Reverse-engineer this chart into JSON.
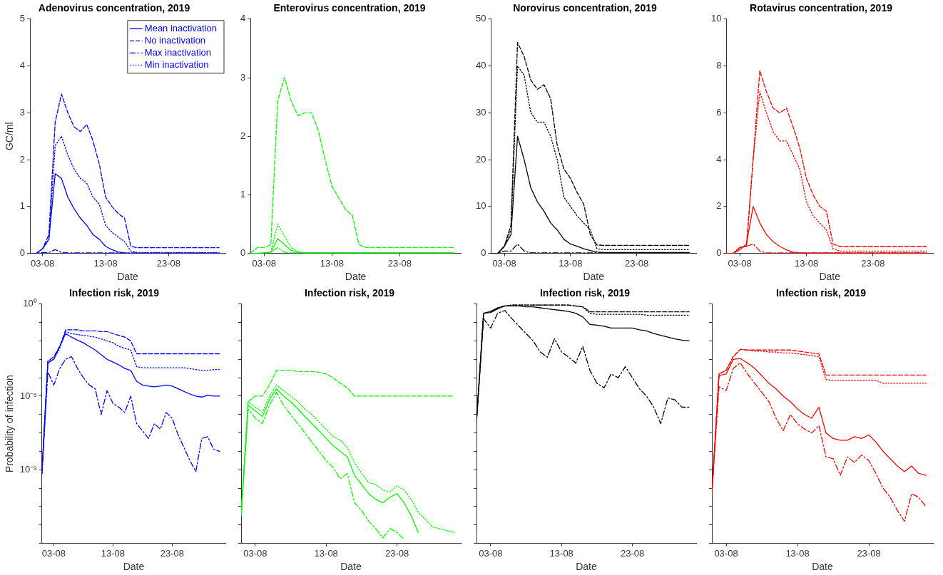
{
  "chart_data": [
    {
      "type": "line",
      "title": "Adenovirus concentration, 2019",
      "xlabel": "Date",
      "ylabel": "GC/ml",
      "legend": "top right",
      "grid": false,
      "x": [
        "--08-01",
        "--08-02",
        "--08-03",
        "--08-04",
        "--08-05",
        "--08-06",
        "--08-07",
        "--08-08",
        "--08-09",
        "--08-10",
        "--08-11",
        "--08-12",
        "--08-13",
        "--08-14",
        "--08-15",
        "--08-16",
        "--08-17",
        "--08-18",
        "--08-19",
        "--08-20",
        "--08-21",
        "--08-22",
        "--08-23",
        "--08-24",
        "--08-25",
        "--08-26",
        "--08-27",
        "--08-28",
        "--08-29",
        "--08-30",
        "--08-31"
      ],
      "xlim": [
        "--08-01",
        "--09-01"
      ],
      "xticks": [
        {
          "value": "--08-03",
          "label": "03-08"
        },
        {
          "value": "--08-13",
          "label": "13-08"
        },
        {
          "value": "--08-23",
          "label": "23-08"
        }
      ],
      "ylim": [
        0,
        5
      ],
      "yticks": [
        0,
        1,
        2,
        3,
        4,
        5
      ],
      "series": [
        {
          "name": "Mean inactivation",
          "color": "#0000ff",
          "line_style": "solid",
          "values": [
            0,
            0,
            0.1,
            0.3,
            1.7,
            1.6,
            1.2,
            0.95,
            0.75,
            0.6,
            0.4,
            0.3,
            0.15,
            0.08,
            0.03,
            0.01,
            0,
            0,
            0,
            0,
            0,
            0,
            0,
            0,
            0,
            0,
            0,
            0,
            0,
            0,
            0
          ]
        },
        {
          "name": "No inactivation",
          "color": "#0000ff",
          "line_style": "dashed",
          "values": [
            0,
            0,
            0.1,
            0.4,
            2.8,
            3.4,
            3.0,
            2.7,
            2.6,
            2.75,
            2.4,
            1.9,
            1.2,
            1.0,
            0.85,
            0.75,
            0.15,
            0.12,
            0.12,
            0.12,
            0.12,
            0.12,
            0.12,
            0.12,
            0.12,
            0.12,
            0.12,
            0.12,
            0.12,
            0.12,
            0.12
          ]
        },
        {
          "name": "Max inactivation",
          "color": "#0000ff",
          "line_style": "dashdot",
          "values": [
            0,
            0,
            0.02,
            0.02,
            0.08,
            0.02,
            0.01,
            0.01,
            0.01,
            0.01,
            0.01,
            0.01,
            0.01,
            0.01,
            0.01,
            0.01,
            0.01,
            0.01,
            0.01,
            0.01,
            0.01,
            0.01,
            0.01,
            0.01,
            0.01,
            0.01,
            0.01,
            0.01,
            0.01,
            0.01,
            0.01
          ]
        },
        {
          "name": "Min inactivation",
          "color": "#0000ff",
          "line_style": "dotted",
          "values": [
            0,
            0,
            0.1,
            0.3,
            2.3,
            2.5,
            2.1,
            1.8,
            1.6,
            1.5,
            1.2,
            1.05,
            0.6,
            0.45,
            0.35,
            0.25,
            0.05,
            0.02,
            0.02,
            0.02,
            0.02,
            0.02,
            0.02,
            0.02,
            0.02,
            0.02,
            0.02,
            0.02,
            0.02,
            0.02,
            0.02
          ]
        }
      ]
    },
    {
      "type": "line",
      "title": "Enterovirus concentration, 2019",
      "xlabel": "Date",
      "grid": false,
      "x": [
        "--08-01",
        "--08-02",
        "--08-03",
        "--08-04",
        "--08-05",
        "--08-06",
        "--08-07",
        "--08-08",
        "--08-09",
        "--08-10",
        "--08-11",
        "--08-12",
        "--08-13",
        "--08-14",
        "--08-15",
        "--08-16",
        "--08-17",
        "--08-18",
        "--08-19",
        "--08-20",
        "--08-21",
        "--08-22",
        "--08-23",
        "--08-24",
        "--08-25",
        "--08-26",
        "--08-27",
        "--08-28",
        "--08-29",
        "--08-30",
        "--08-31"
      ],
      "xlim": [
        "--08-01",
        "--09-01"
      ],
      "xticks": [
        {
          "value": "--08-03",
          "label": "03-08"
        },
        {
          "value": "--08-13",
          "label": "13-08"
        },
        {
          "value": "--08-23",
          "label": "23-08"
        }
      ],
      "ylim": [
        0,
        4
      ],
      "yticks": [
        0,
        1,
        2,
        3,
        4
      ],
      "series": [
        {
          "color": "#00ff00",
          "line_style": "solid",
          "values": [
            0,
            0,
            0.01,
            0.02,
            0.25,
            0.15,
            0.05,
            0.02,
            0.01,
            0.01,
            0.01,
            0.01,
            0.01,
            0.01,
            0.01,
            0.01,
            0.01,
            0.01,
            0.01,
            0.01,
            0.01,
            0.01,
            0.01,
            0.01,
            0.01,
            0.01,
            0.01,
            0.01,
            0.01,
            0.01,
            0.01
          ]
        },
        {
          "color": "#00ff00",
          "line_style": "dashed",
          "values": [
            0,
            0.1,
            0.1,
            0.15,
            2.6,
            3.0,
            2.6,
            2.35,
            2.4,
            2.4,
            2.1,
            1.6,
            1.15,
            0.95,
            0.75,
            0.65,
            0.15,
            0.1,
            0.1,
            0.1,
            0.1,
            0.1,
            0.1,
            0.1,
            0.1,
            0.1,
            0.1,
            0.1,
            0.1,
            0.1,
            0.1
          ]
        },
        {
          "color": "#00ff00",
          "line_style": "dashdot",
          "values": [
            0,
            0,
            0.01,
            0.02,
            0.1,
            0.02,
            0.01,
            0.01,
            0.01,
            0.01,
            0.01,
            0.01,
            0.01,
            0.01,
            0.01,
            0.01,
            0.01,
            0.01,
            0.01,
            0.01,
            0.01,
            0.01,
            0.01,
            0.01,
            0.01,
            0.01,
            0.01,
            0.01,
            0.01,
            0.01,
            0.01
          ]
        },
        {
          "color": "#00ff00",
          "line_style": "dotted",
          "values": [
            0,
            0,
            0.01,
            0.03,
            0.5,
            0.3,
            0.1,
            0.03,
            0.01,
            0.01,
            0.01,
            0.01,
            0.01,
            0.01,
            0.01,
            0.01,
            0.01,
            0.01,
            0.01,
            0.01,
            0.01,
            0.01,
            0.01,
            0.01,
            0.01,
            0.01,
            0.01,
            0.01,
            0.01,
            0.01,
            0.01
          ]
        }
      ]
    },
    {
      "type": "line",
      "title": "Norovirus concentration, 2019",
      "xlabel": "Date",
      "grid": false,
      "x": [
        "--08-01",
        "--08-02",
        "--08-03",
        "--08-04",
        "--08-05",
        "--08-06",
        "--08-07",
        "--08-08",
        "--08-09",
        "--08-10",
        "--08-11",
        "--08-12",
        "--08-13",
        "--08-14",
        "--08-15",
        "--08-16",
        "--08-17",
        "--08-18",
        "--08-19",
        "--08-20",
        "--08-21",
        "--08-22",
        "--08-23",
        "--08-24",
        "--08-25",
        "--08-26",
        "--08-27",
        "--08-28",
        "--08-29",
        "--08-30",
        "--08-31"
      ],
      "xlim": [
        "--08-01",
        "--09-01"
      ],
      "xticks": [
        {
          "value": "--08-03",
          "label": "03-08"
        },
        {
          "value": "--08-13",
          "label": "13-08"
        },
        {
          "value": "--08-23",
          "label": "23-08"
        }
      ],
      "ylim": [
        0,
        50
      ],
      "yticks": [
        0,
        10,
        20,
        30,
        40,
        50
      ],
      "series": [
        {
          "color": "#000000",
          "line_style": "solid",
          "values": [
            0,
            0,
            1.5,
            4,
            25,
            20,
            14,
            11,
            9,
            6.5,
            5,
            3,
            2,
            1.5,
            1,
            0.6,
            0.3,
            0.2,
            0.2,
            0.2,
            0.2,
            0.2,
            0.2,
            0.2,
            0.2,
            0.2,
            0.2,
            0.2,
            0.2,
            0.2,
            0.2
          ]
        },
        {
          "color": "#000000",
          "line_style": "dashed",
          "values": [
            0,
            0,
            1.5,
            6,
            45,
            42,
            37,
            35,
            36,
            33,
            23,
            18,
            16,
            13,
            10.5,
            4,
            1.8,
            1.7,
            1.7,
            1.7,
            1.7,
            1.7,
            1.7,
            1.7,
            1.7,
            1.7,
            1.7,
            1.7,
            1.7,
            1.7,
            1.7
          ]
        },
        {
          "color": "#000000",
          "line_style": "dashdot",
          "values": [
            0,
            0,
            0.5,
            0.5,
            2,
            0.5,
            0.1,
            0.1,
            0.1,
            0.1,
            0.1,
            0.1,
            0.1,
            0.1,
            0.1,
            0.1,
            0.1,
            0.1,
            0.1,
            0.1,
            0.1,
            0.1,
            0.1,
            0.1,
            0.1,
            0.1,
            0.1,
            0.1,
            0.1,
            0.1,
            0.1
          ]
        },
        {
          "color": "#000000",
          "line_style": "dotted",
          "values": [
            0,
            0,
            1.5,
            5,
            40,
            38,
            30,
            28,
            28,
            25,
            20,
            12,
            10,
            8,
            6.5,
            5,
            1,
            0.8,
            0.8,
            0.8,
            0.8,
            0.8,
            0.8,
            0.8,
            0.8,
            0.8,
            0.8,
            0.8,
            0.8,
            0.8,
            0.8
          ]
        }
      ]
    },
    {
      "type": "line",
      "title": "Rotavirus concentration, 2019",
      "xlabel": "Date",
      "grid": false,
      "x": [
        "--08-01",
        "--08-02",
        "--08-03",
        "--08-04",
        "--08-05",
        "--08-06",
        "--08-07",
        "--08-08",
        "--08-09",
        "--08-10",
        "--08-11",
        "--08-12",
        "--08-13",
        "--08-14",
        "--08-15",
        "--08-16",
        "--08-17",
        "--08-18",
        "--08-19",
        "--08-20",
        "--08-21",
        "--08-22",
        "--08-23",
        "--08-24",
        "--08-25",
        "--08-26",
        "--08-27",
        "--08-28",
        "--08-29",
        "--08-30",
        "--08-31"
      ],
      "xlim": [
        "--08-01",
        "--09-01"
      ],
      "xticks": [
        {
          "value": "--08-03",
          "label": "03-08"
        },
        {
          "value": "--08-13",
          "label": "13-08"
        },
        {
          "value": "--08-23",
          "label": "23-08"
        }
      ],
      "ylim": [
        0,
        10
      ],
      "yticks": [
        0,
        2,
        4,
        6,
        8,
        10
      ],
      "series": [
        {
          "color": "#ff0000",
          "line_style": "solid",
          "values": [
            0,
            0,
            0.15,
            0.4,
            2.0,
            1.3,
            0.8,
            0.5,
            0.3,
            0.15,
            0.05,
            0.02,
            0.01,
            0.01,
            0.01,
            0.01,
            0.01,
            0.01,
            0.01,
            0.01,
            0.01,
            0.01,
            0.01,
            0.01,
            0.01,
            0.01,
            0.01,
            0.01,
            0.01,
            0.01,
            0.01
          ]
        },
        {
          "color": "#ff0000",
          "line_style": "dashed",
          "values": [
            0,
            0,
            0.25,
            0.3,
            4,
            7.8,
            6.9,
            6.2,
            6.0,
            6.2,
            5.4,
            4.5,
            3.2,
            2.5,
            2.0,
            1.8,
            0.4,
            0.3,
            0.3,
            0.3,
            0.3,
            0.3,
            0.3,
            0.3,
            0.3,
            0.3,
            0.3,
            0.3,
            0.3,
            0.3,
            0.3
          ]
        },
        {
          "color": "#ff0000",
          "line_style": "dashdot",
          "values": [
            0,
            0,
            0.25,
            0.3,
            0.4,
            0.1,
            0.02,
            0.02,
            0.02,
            0.02,
            0.02,
            0.02,
            0.02,
            0.02,
            0.02,
            0.02,
            0.02,
            0.02,
            0.02,
            0.02,
            0.02,
            0.02,
            0.02,
            0.02,
            0.02,
            0.02,
            0.02,
            0.02,
            0.02,
            0.02,
            0.02
          ]
        },
        {
          "color": "#ff0000",
          "line_style": "dotted",
          "values": [
            0,
            0,
            0.25,
            0.3,
            4,
            6.9,
            6.0,
            5.2,
            4.8,
            4.8,
            4.2,
            3.6,
            2.2,
            1.6,
            1.3,
            1.0,
            0.2,
            0.1,
            0.1,
            0.1,
            0.1,
            0.1,
            0.1,
            0.1,
            0.1,
            0.1,
            0.1,
            0.1,
            0.1,
            0.1,
            0.1
          ]
        }
      ]
    },
    {
      "type": "line",
      "title": "Infection risk, 2019",
      "xlabel": "Date",
      "ylabel": "Probability of infection",
      "grid": false,
      "log": "y",
      "x": [
        "--08-01",
        "--08-02",
        "--08-03",
        "--08-04",
        "--08-05",
        "--08-06",
        "--08-07",
        "--08-08",
        "--08-09",
        "--08-10",
        "--08-11",
        "--08-12",
        "--08-13",
        "--08-14",
        "--08-15",
        "--08-16",
        "--08-17",
        "--08-18",
        "--08-19",
        "--08-20",
        "--08-21",
        "--08-22",
        "--08-23",
        "--08-24",
        "--08-25",
        "--08-26",
        "--08-27",
        "--08-28",
        "--08-29",
        "--08-30",
        "--08-31"
      ],
      "xlim": [
        "--08-01",
        "--09-01"
      ],
      "xticks": [
        {
          "value": "--08-03",
          "label": "03-08"
        },
        {
          "value": "--08-13",
          "label": "13-08"
        },
        {
          "value": "--08-23",
          "label": "23-08"
        }
      ],
      "ylim": [
        1e-13,
        1
      ],
      "yticks": [
        {
          "value": 1,
          "label": "10⁰"
        },
        {
          "value": 0.1,
          "label": null
        },
        {
          "value": 0.01,
          "label": null
        },
        {
          "value": 0.001,
          "label": null
        },
        {
          "value": 0.0001,
          "label": null
        },
        {
          "value": 1e-05,
          "label": "10⁻⁵"
        },
        {
          "value": 1e-06,
          "label": null
        },
        {
          "value": 1e-07,
          "label": null
        },
        {
          "value": 1e-08,
          "label": null
        },
        {
          "value": 1e-09,
          "label": "10⁻⁹"
        },
        {
          "value": 1e-10,
          "label": null
        },
        {
          "value": 1e-11,
          "label": null
        },
        {
          "value": 1e-12,
          "label": null
        },
        {
          "value": 1e-13,
          "label": null
        }
      ],
      "series": [
        {
          "color": "#0000ff",
          "line_style": "solid",
          "values": [
            1e-09,
            0.00063,
            0.001,
            0.005,
            0.025,
            0.016,
            0.011,
            0.0079,
            0.005,
            0.0032,
            0.0018,
            0.001,
            0.00071,
            0.0005,
            0.00032,
            0.00025,
            6.3e-05,
            4e-05,
            3.5e-05,
            3.2e-05,
            3.5e-05,
            4e-05,
            3.5e-05,
            2.5e-05,
            1.8e-05,
            1.3e-05,
            1e-05,
            8.9e-06,
            1.1e-05,
            1e-05,
            1e-05
          ]
        },
        {
          "color": "#0000ff",
          "line_style": "dashed",
          "values": [
            6.3e-10,
            0.00079,
            0.0014,
            0.005,
            0.04,
            0.04,
            0.04,
            0.035,
            0.035,
            0.035,
            0.032,
            0.032,
            0.025,
            0.02,
            0.016,
            0.01,
            0.002,
            0.002,
            0.002,
            0.002,
            0.002,
            0.002,
            0.002,
            0.002,
            0.002,
            0.002,
            0.002,
            0.002,
            0.002,
            0.002,
            0.002
          ]
        },
        {
          "color": "#0000ff",
          "line_style": "dashdot",
          "values": [
            6.3e-10,
            0.0002,
            4e-05,
            0.00032,
            0.001,
            0.0014,
            0.00032,
            0.0001,
            4e-05,
            2.5e-05,
            1e-06,
            2e-05,
            4e-06,
            2.5e-06,
            1.3e-06,
            1e-05,
            3.2e-07,
            1.3e-07,
            5e-08,
            3.2e-07,
            1.6e-07,
            1.3e-06,
            6.3e-07,
            7.9e-08,
            1.6e-08,
            3.2e-09,
            7.9e-10,
            5e-08,
            6.3e-08,
            1.3e-08,
            1e-08
          ]
        },
        {
          "color": "#0000ff",
          "line_style": "dotted",
          "values": [
            6.3e-10,
            0.00079,
            0.001,
            0.004,
            0.032,
            0.025,
            0.022,
            0.02,
            0.018,
            0.016,
            0.013,
            0.01,
            0.0079,
            0.005,
            0.004,
            0.0032,
            0.0004,
            0.00035,
            0.00035,
            0.00035,
            0.00035,
            0.00035,
            0.00035,
            0.00035,
            0.00035,
            0.00032,
            0.00028,
            0.00025,
            0.00025,
            0.00028,
            0.00028
          ]
        }
      ]
    },
    {
      "type": "line",
      "title": "Infection risk, 2019",
      "xlabel": "Date",
      "grid": false,
      "log": "y",
      "tick_labels": "x",
      "x": [
        "--08-01",
        "--08-02",
        "--08-03",
        "--08-04",
        "--08-05",
        "--08-06",
        "--08-07",
        "--08-08",
        "--08-09",
        "--08-10",
        "--08-11",
        "--08-12",
        "--08-13",
        "--08-14",
        "--08-15",
        "--08-16",
        "--08-17",
        "--08-18",
        "--08-19",
        "--08-20",
        "--08-21",
        "--08-22",
        "--08-23",
        "--08-24",
        "--08-25",
        "--08-26",
        "--08-27",
        "--08-28",
        "--08-29",
        "--08-30",
        "--08-31"
      ],
      "xlim": [
        "--08-01",
        "--09-01"
      ],
      "xticks": [
        {
          "value": "--08-03",
          "label": "03-08"
        },
        {
          "value": "--08-13",
          "label": "13-08"
        },
        {
          "value": "--08-23",
          "label": "23-08"
        }
      ],
      "ylim": [
        1e-13,
        1
      ],
      "yticks": [
        {
          "value": 1,
          "label": null
        },
        {
          "value": 0.1,
          "label": null
        },
        {
          "value": 0.01,
          "label": null
        },
        {
          "value": 0.001,
          "label": null
        },
        {
          "value": 0.0001,
          "label": null
        },
        {
          "value": 1e-05,
          "label": null
        },
        {
          "value": 1e-06,
          "label": null
        },
        {
          "value": 1e-07,
          "label": null
        },
        {
          "value": 1e-08,
          "label": null
        },
        {
          "value": 1e-09,
          "label": null
        },
        {
          "value": 1e-10,
          "label": null
        },
        {
          "value": 1e-11,
          "label": null
        },
        {
          "value": 1e-12,
          "label": null
        },
        {
          "value": 1e-13,
          "label": null
        }
      ],
      "series": [
        {
          "color": "#00ff00",
          "line_style": "solid",
          "values": [
            3.2e-12,
            3.2e-06,
            1.6e-06,
            7.9e-07,
            6.3e-06,
            2.5e-05,
            1e-05,
            5e-06,
            2e-06,
            7.9e-07,
            3.2e-07,
            1.3e-07,
            5e-08,
            2e-08,
            1e-08,
            5e-09,
            5e-10,
            1.6e-10,
            5e-11,
            2.5e-11,
            1.6e-11,
            3.2e-11,
            5e-11,
            1.6e-11,
            3.2e-12,
            4e-13,
            null,
            null,
            null,
            null,
            null
          ]
        },
        {
          "color": "#00ff00",
          "line_style": "dashed",
          "values": [
            3.2e-12,
            5e-06,
            1e-05,
            1e-05,
            4e-05,
            0.00025,
            0.00025,
            0.00025,
            0.00022,
            0.00022,
            0.00022,
            0.0002,
            0.00016,
            0.0001,
            5e-05,
            2.8e-05,
            1e-05,
            1e-05,
            1e-05,
            1e-05,
            1e-05,
            1e-05,
            1e-05,
            1e-05,
            1e-05,
            1e-05,
            1e-05,
            1e-05,
            1e-05,
            1e-05,
            1e-05
          ]
        },
        {
          "color": "#00ff00",
          "line_style": "dashdot",
          "values": [
            3.2e-12,
            2e-06,
            6.3e-07,
            3.2e-07,
            3.2e-06,
            1.6e-05,
            3.2e-06,
            1e-06,
            3.2e-07,
            1e-07,
            3.2e-08,
            1e-08,
            3.2e-09,
            1.3e-09,
            3.2e-10,
            6.3e-10,
            1.6e-11,
            6.3e-12,
            1.6e-12,
            6.3e-13,
            2e-13,
            6.3e-13,
            4e-13,
            1.6e-13,
            null,
            null,
            null,
            null,
            null,
            null,
            null
          ]
        },
        {
          "color": "#00ff00",
          "line_style": "dotted",
          "values": [
            3.2e-12,
            5e-06,
            2.5e-06,
            1.3e-06,
            1e-05,
            4e-05,
            2e-05,
            1e-05,
            5e-06,
            2e-06,
            1e-06,
            4e-07,
            1.6e-07,
            6.3e-08,
            4e-08,
            1.6e-08,
            2.5e-09,
            6.3e-10,
            2e-10,
            1.6e-10,
            7.9e-11,
            6.3e-11,
            1.3e-10,
            7.9e-11,
            2.5e-11,
            5e-12,
            2e-12,
            7.9e-13,
            6.3e-13,
            5e-13,
            4e-13
          ]
        }
      ]
    },
    {
      "type": "line",
      "title": "Infection risk, 2019",
      "xlabel": "Date",
      "grid": false,
      "log": "y",
      "tick_labels": "x",
      "x": [
        "--08-01",
        "--08-02",
        "--08-03",
        "--08-04",
        "--08-05",
        "--08-06",
        "--08-07",
        "--08-08",
        "--08-09",
        "--08-10",
        "--08-11",
        "--08-12",
        "--08-13",
        "--08-14",
        "--08-15",
        "--08-16",
        "--08-17",
        "--08-18",
        "--08-19",
        "--08-20",
        "--08-21",
        "--08-22",
        "--08-23",
        "--08-24",
        "--08-25",
        "--08-26",
        "--08-27",
        "--08-28",
        "--08-29",
        "--08-30",
        "--08-31"
      ],
      "xlim": [
        "--08-01",
        "--09-01"
      ],
      "xticks": [
        {
          "value": "--08-03",
          "label": "03-08"
        },
        {
          "value": "--08-13",
          "label": "13-08"
        },
        {
          "value": "--08-23",
          "label": "23-08"
        }
      ],
      "ylim": [
        1e-13,
        1
      ],
      "yticks": [
        {
          "value": 1,
          "label": null
        },
        {
          "value": 0.1,
          "label": null
        },
        {
          "value": 0.01,
          "label": null
        },
        {
          "value": 0.001,
          "label": null
        },
        {
          "value": 0.0001,
          "label": null
        },
        {
          "value": 1e-05,
          "label": null
        },
        {
          "value": 1e-06,
          "label": null
        },
        {
          "value": 1e-07,
          "label": null
        },
        {
          "value": 1e-08,
          "label": null
        },
        {
          "value": 1e-09,
          "label": null
        },
        {
          "value": 1e-10,
          "label": null
        },
        {
          "value": 1e-11,
          "label": null
        },
        {
          "value": 1e-12,
          "label": null
        },
        {
          "value": 1e-13,
          "label": null
        }
      ],
      "series": [
        {
          "color": "#000000",
          "line_style": "solid",
          "values": [
            4e-07,
            0.32,
            0.35,
            0.56,
            0.79,
            0.79,
            0.79,
            0.71,
            0.71,
            0.63,
            0.56,
            0.5,
            0.45,
            0.4,
            0.32,
            0.2,
            0.079,
            0.071,
            0.063,
            0.05,
            0.05,
            0.05,
            0.05,
            0.04,
            0.035,
            0.025,
            0.02,
            0.016,
            0.013,
            0.011,
            0.01
          ]
        },
        {
          "color": "#000000",
          "line_style": "dashed",
          "values": [
            4e-07,
            0.32,
            0.4,
            0.63,
            0.79,
            0.89,
            0.89,
            0.89,
            0.89,
            0.89,
            0.89,
            0.89,
            0.89,
            0.89,
            0.79,
            0.71,
            0.38,
            0.38,
            0.38,
            0.38,
            0.38,
            0.38,
            0.38,
            0.38,
            0.38,
            0.38,
            0.38,
            0.38,
            0.38,
            0.38,
            0.38
          ]
        },
        {
          "color": "#000000",
          "line_style": "dashdot",
          "values": [
            4e-07,
            0.16,
            0.05,
            0.32,
            0.45,
            0.16,
            0.063,
            0.025,
            0.01,
            0.0025,
            0.0013,
            0.013,
            0.0025,
            0.0013,
            0.00063,
            0.005,
            0.00025,
            5e-05,
            2.8e-05,
            0.00016,
            0.0001,
            0.0004,
            0.0001,
            2.5e-05,
            1e-05,
            2.5e-06,
            3.2e-07,
            7.9e-06,
            6.3e-06,
            2.5e-06,
            2.5e-06
          ]
        },
        {
          "color": "#000000",
          "line_style": "dotted",
          "values": [
            4e-07,
            0.32,
            0.4,
            0.63,
            0.79,
            0.89,
            0.89,
            0.89,
            0.89,
            0.89,
            0.89,
            0.89,
            0.89,
            0.89,
            0.79,
            0.71,
            0.32,
            0.28,
            0.28,
            0.28,
            0.28,
            0.28,
            0.28,
            0.28,
            0.25,
            0.25,
            0.25,
            0.25,
            0.25,
            0.25,
            0.25
          ]
        }
      ]
    },
    {
      "type": "line",
      "title": "Infection risk, 2019",
      "xlabel": "Date",
      "grid": false,
      "log": "y",
      "tick_labels": "x",
      "x": [
        "--08-01",
        "--08-02",
        "--08-03",
        "--08-04",
        "--08-05",
        "--08-06",
        "--08-07",
        "--08-08",
        "--08-09",
        "--08-10",
        "--08-11",
        "--08-12",
        "--08-13",
        "--08-14",
        "--08-15",
        "--08-16",
        "--08-17",
        "--08-18",
        "--08-19",
        "--08-20",
        "--08-21",
        "--08-22",
        "--08-23",
        "--08-24",
        "--08-25",
        "--08-26",
        "--08-27",
        "--08-28",
        "--08-29",
        "--08-30",
        "--08-31"
      ],
      "xlim": [
        "--08-01",
        "--09-01"
      ],
      "xticks": [
        {
          "value": "--08-03",
          "label": "03-08"
        },
        {
          "value": "--08-13",
          "label": "13-08"
        },
        {
          "value": "--08-23",
          "label": "23-08"
        }
      ],
      "ylim": [
        1e-13,
        1
      ],
      "yticks": [
        {
          "value": 1,
          "label": null
        },
        {
          "value": 0.1,
          "label": null
        },
        {
          "value": 0.01,
          "label": null
        },
        {
          "value": 0.001,
          "label": null
        },
        {
          "value": 0.0001,
          "label": null
        },
        {
          "value": 1e-05,
          "label": null
        },
        {
          "value": 1e-06,
          "label": null
        },
        {
          "value": 1e-07,
          "label": null
        },
        {
          "value": 1e-08,
          "label": null
        },
        {
          "value": 1e-09,
          "label": null
        },
        {
          "value": 1e-10,
          "label": null
        },
        {
          "value": 1e-11,
          "label": null
        },
        {
          "value": 1e-12,
          "label": null
        },
        {
          "value": 1e-13,
          "label": null
        }
      ],
      "series": [
        {
          "color": "#ff0000",
          "line_style": "solid",
          "values": [
            5e-11,
            0.00013,
            0.00016,
            0.001,
            0.0011,
            0.00063,
            0.00032,
            0.00013,
            5e-05,
            2.5e-05,
            1e-05,
            5e-06,
            2e-06,
            1e-06,
            6.3e-07,
            2.5e-06,
            1e-07,
            5e-08,
            4e-08,
            4e-08,
            6.3e-08,
            5e-08,
            7.9e-08,
            3.2e-08,
            1e-08,
            4e-09,
            1.6e-09,
            7.9e-10,
            1.6e-09,
            6.3e-10,
            5e-10
          ]
        },
        {
          "color": "#ff0000",
          "line_style": "dashed",
          "values": [
            5e-11,
            0.00016,
            0.00025,
            0.0014,
            0.0035,
            0.0032,
            0.0032,
            0.0032,
            0.0032,
            0.0032,
            0.0032,
            0.0032,
            0.0028,
            0.0025,
            0.0022,
            0.002,
            0.00014,
            0.00014,
            0.00014,
            0.00014,
            0.00014,
            0.00014,
            0.00014,
            0.00014,
            0.00014,
            0.00014,
            0.00014,
            0.00014,
            0.00014,
            0.00014,
            0.00014
          ]
        },
        {
          "color": "#ff0000",
          "line_style": "dashdot",
          "values": [
            5e-11,
            3.2e-05,
            2e-05,
            0.00032,
            0.00063,
            0.00016,
            5e-05,
            1.6e-05,
            5e-06,
            6.3e-07,
            1.3e-07,
            1e-06,
            3.2e-07,
            1.6e-07,
            1e-07,
            2.5e-07,
            5e-09,
            4e-09,
            5e-10,
            5e-09,
            2.5e-09,
            6.3e-09,
            3.2e-09,
            6.3e-10,
            1e-10,
            3.2e-11,
            6.3e-12,
            1.6e-12,
            5e-11,
            3.2e-11,
            1e-11
          ]
        },
        {
          "color": "#ff0000",
          "line_style": "dotted",
          "values": [
            5e-11,
            0.00016,
            0.00025,
            0.0014,
            0.0035,
            0.0032,
            0.0028,
            0.0028,
            0.0025,
            0.0025,
            0.0022,
            0.0022,
            0.002,
            0.0018,
            0.0016,
            0.0014,
            7.9e-05,
            7.1e-05,
            7.1e-05,
            7.1e-05,
            7.1e-05,
            7.1e-05,
            7.1e-05,
            7.1e-05,
            5e-05,
            5e-05,
            5e-05,
            5e-05,
            5e-05,
            5e-05,
            5e-05
          ]
        }
      ]
    }
  ]
}
